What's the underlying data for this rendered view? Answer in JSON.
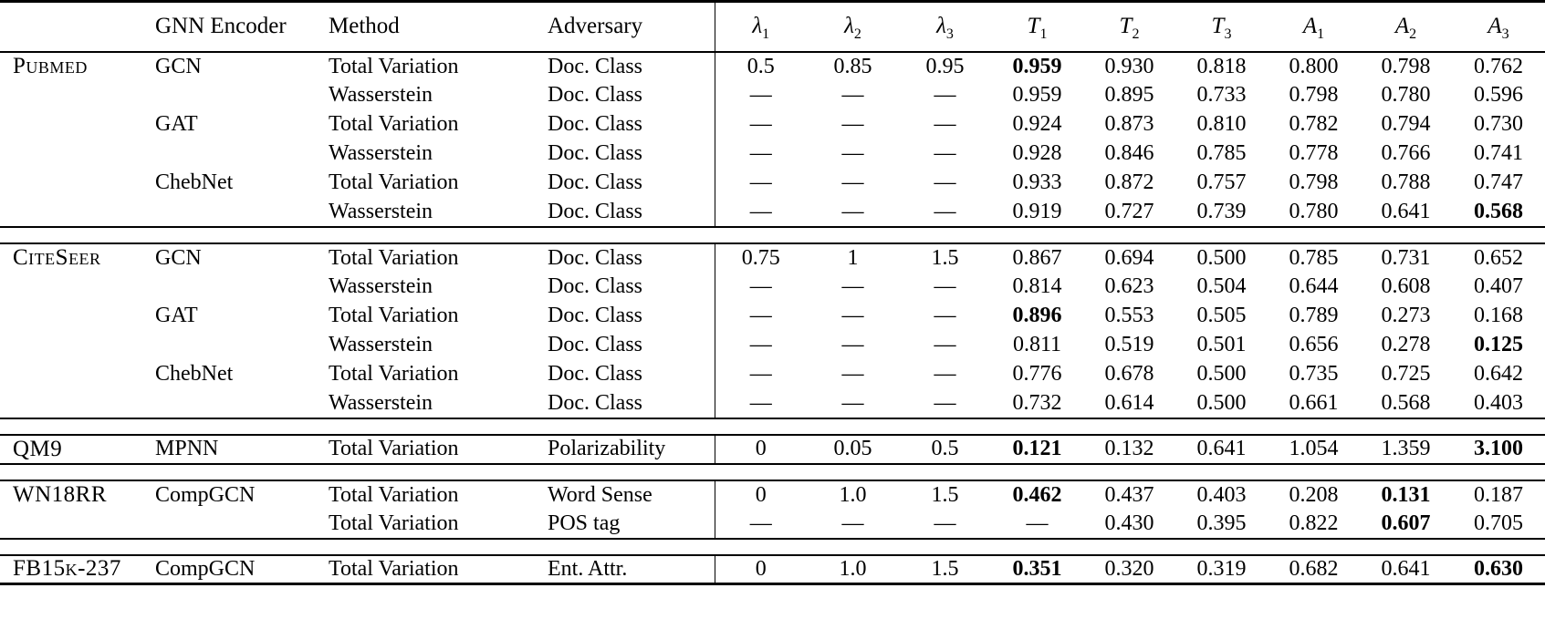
{
  "colors": {
    "text": "#000000",
    "background": "#ffffff",
    "rule": "#000000"
  },
  "table": {
    "header": {
      "dataset": "",
      "encoder": "GNN Encoder",
      "method": "Method",
      "adversary": "Adversary",
      "math_columns": [
        {
          "base": "λ",
          "sub": "1"
        },
        {
          "base": "λ",
          "sub": "2"
        },
        {
          "base": "λ",
          "sub": "3"
        },
        {
          "base": "T",
          "sub": "1"
        },
        {
          "base": "T",
          "sub": "2"
        },
        {
          "base": "T",
          "sub": "3"
        },
        {
          "base": "A",
          "sub": "1"
        },
        {
          "base": "A",
          "sub": "2"
        },
        {
          "base": "A",
          "sub": "3"
        }
      ]
    },
    "groups": [
      {
        "dataset": "Pubmed",
        "rows": [
          {
            "dataset": "Pubmed",
            "encoder": "GCN",
            "method": "Total Variation",
            "adversary": "Doc. Class",
            "values": [
              "0.5",
              "0.85",
              "0.95",
              "0.959",
              "0.930",
              "0.818",
              "0.800",
              "0.798",
              "0.762"
            ],
            "bold": [
              3
            ]
          },
          {
            "dataset": "",
            "encoder": "",
            "method": "Wasserstein",
            "adversary": "Doc. Class",
            "values": [
              "—",
              "—",
              "—",
              "0.959",
              "0.895",
              "0.733",
              "0.798",
              "0.780",
              "0.596"
            ],
            "bold": []
          },
          {
            "dataset": "",
            "encoder": "GAT",
            "method": "Total Variation",
            "adversary": "Doc. Class",
            "values": [
              "—",
              "—",
              "—",
              "0.924",
              "0.873",
              "0.810",
              "0.782",
              "0.794",
              "0.730"
            ],
            "bold": []
          },
          {
            "dataset": "",
            "encoder": "",
            "method": "Wasserstein",
            "adversary": "Doc. Class",
            "values": [
              "—",
              "—",
              "—",
              "0.928",
              "0.846",
              "0.785",
              "0.778",
              "0.766",
              "0.741"
            ],
            "bold": []
          },
          {
            "dataset": "",
            "encoder": "ChebNet",
            "method": "Total Variation",
            "adversary": "Doc. Class",
            "values": [
              "—",
              "—",
              "—",
              "0.933",
              "0.872",
              "0.757",
              "0.798",
              "0.788",
              "0.747"
            ],
            "bold": []
          },
          {
            "dataset": "",
            "encoder": "",
            "method": "Wasserstein",
            "adversary": "Doc. Class",
            "values": [
              "—",
              "—",
              "—",
              "0.919",
              "0.727",
              "0.739",
              "0.780",
              "0.641",
              "0.568"
            ],
            "bold": [
              8
            ]
          }
        ]
      },
      {
        "dataset": "CiteSeer",
        "rows": [
          {
            "dataset": "CiteSeer",
            "encoder": "GCN",
            "method": "Total Variation",
            "adversary": "Doc. Class",
            "values": [
              "0.75",
              "1",
              "1.5",
              "0.867",
              "0.694",
              "0.500",
              "0.785",
              "0.731",
              "0.652"
            ],
            "bold": []
          },
          {
            "dataset": "",
            "encoder": "",
            "method": "Wasserstein",
            "adversary": "Doc. Class",
            "values": [
              "—",
              "—",
              "—",
              "0.814",
              "0.623",
              "0.504",
              "0.644",
              "0.608",
              "0.407"
            ],
            "bold": []
          },
          {
            "dataset": "",
            "encoder": "GAT",
            "method": "Total Variation",
            "adversary": "Doc. Class",
            "values": [
              "—",
              "—",
              "—",
              "0.896",
              "0.553",
              "0.505",
              "0.789",
              "0.273",
              "0.168"
            ],
            "bold": [
              3
            ]
          },
          {
            "dataset": "",
            "encoder": "",
            "method": "Wasserstein",
            "adversary": "Doc. Class",
            "values": [
              "—",
              "—",
              "—",
              "0.811",
              "0.519",
              "0.501",
              "0.656",
              "0.278",
              "0.125"
            ],
            "bold": [
              8
            ]
          },
          {
            "dataset": "",
            "encoder": "ChebNet",
            "method": "Total Variation",
            "adversary": "Doc. Class",
            "values": [
              "—",
              "—",
              "—",
              "0.776",
              "0.678",
              "0.500",
              "0.735",
              "0.725",
              "0.642"
            ],
            "bold": []
          },
          {
            "dataset": "",
            "encoder": "",
            "method": "Wasserstein",
            "adversary": "Doc. Class",
            "values": [
              "—",
              "—",
              "—",
              "0.732",
              "0.614",
              "0.500",
              "0.661",
              "0.568",
              "0.403"
            ],
            "bold": []
          }
        ]
      },
      {
        "dataset": "QM9",
        "rows": [
          {
            "dataset": "QM9",
            "encoder": "MPNN",
            "method": "Total Variation",
            "adversary": "Polarizability",
            "values": [
              "0",
              "0.05",
              "0.5",
              "0.121",
              "0.132",
              "0.641",
              "1.054",
              "1.359",
              "3.100"
            ],
            "bold": [
              3,
              8
            ]
          }
        ]
      },
      {
        "dataset": "WN18RR",
        "rows": [
          {
            "dataset": "WN18RR",
            "encoder": "CompGCN",
            "method": "Total Variation",
            "adversary": "Word Sense",
            "values": [
              "0",
              "1.0",
              "1.5",
              "0.462",
              "0.437",
              "0.403",
              "0.208",
              "0.131",
              "0.187"
            ],
            "bold": [
              3,
              7
            ]
          },
          {
            "dataset": "",
            "encoder": "",
            "method": "Total Variation",
            "adversary": "POS tag",
            "values": [
              "—",
              "—",
              "—",
              "—",
              "0.430",
              "0.395",
              "0.822",
              "0.607",
              "0.705"
            ],
            "bold": [
              7
            ]
          }
        ]
      },
      {
        "dataset": "FB15k-237",
        "rows": [
          {
            "dataset": "FB15k-237",
            "encoder": "CompGCN",
            "method": "Total Variation",
            "adversary": "Ent. Attr.",
            "values": [
              "0",
              "1.0",
              "1.5",
              "0.351",
              "0.320",
              "0.319",
              "0.682",
              "0.641",
              "0.630"
            ],
            "bold": [
              3,
              8
            ]
          }
        ]
      }
    ]
  }
}
